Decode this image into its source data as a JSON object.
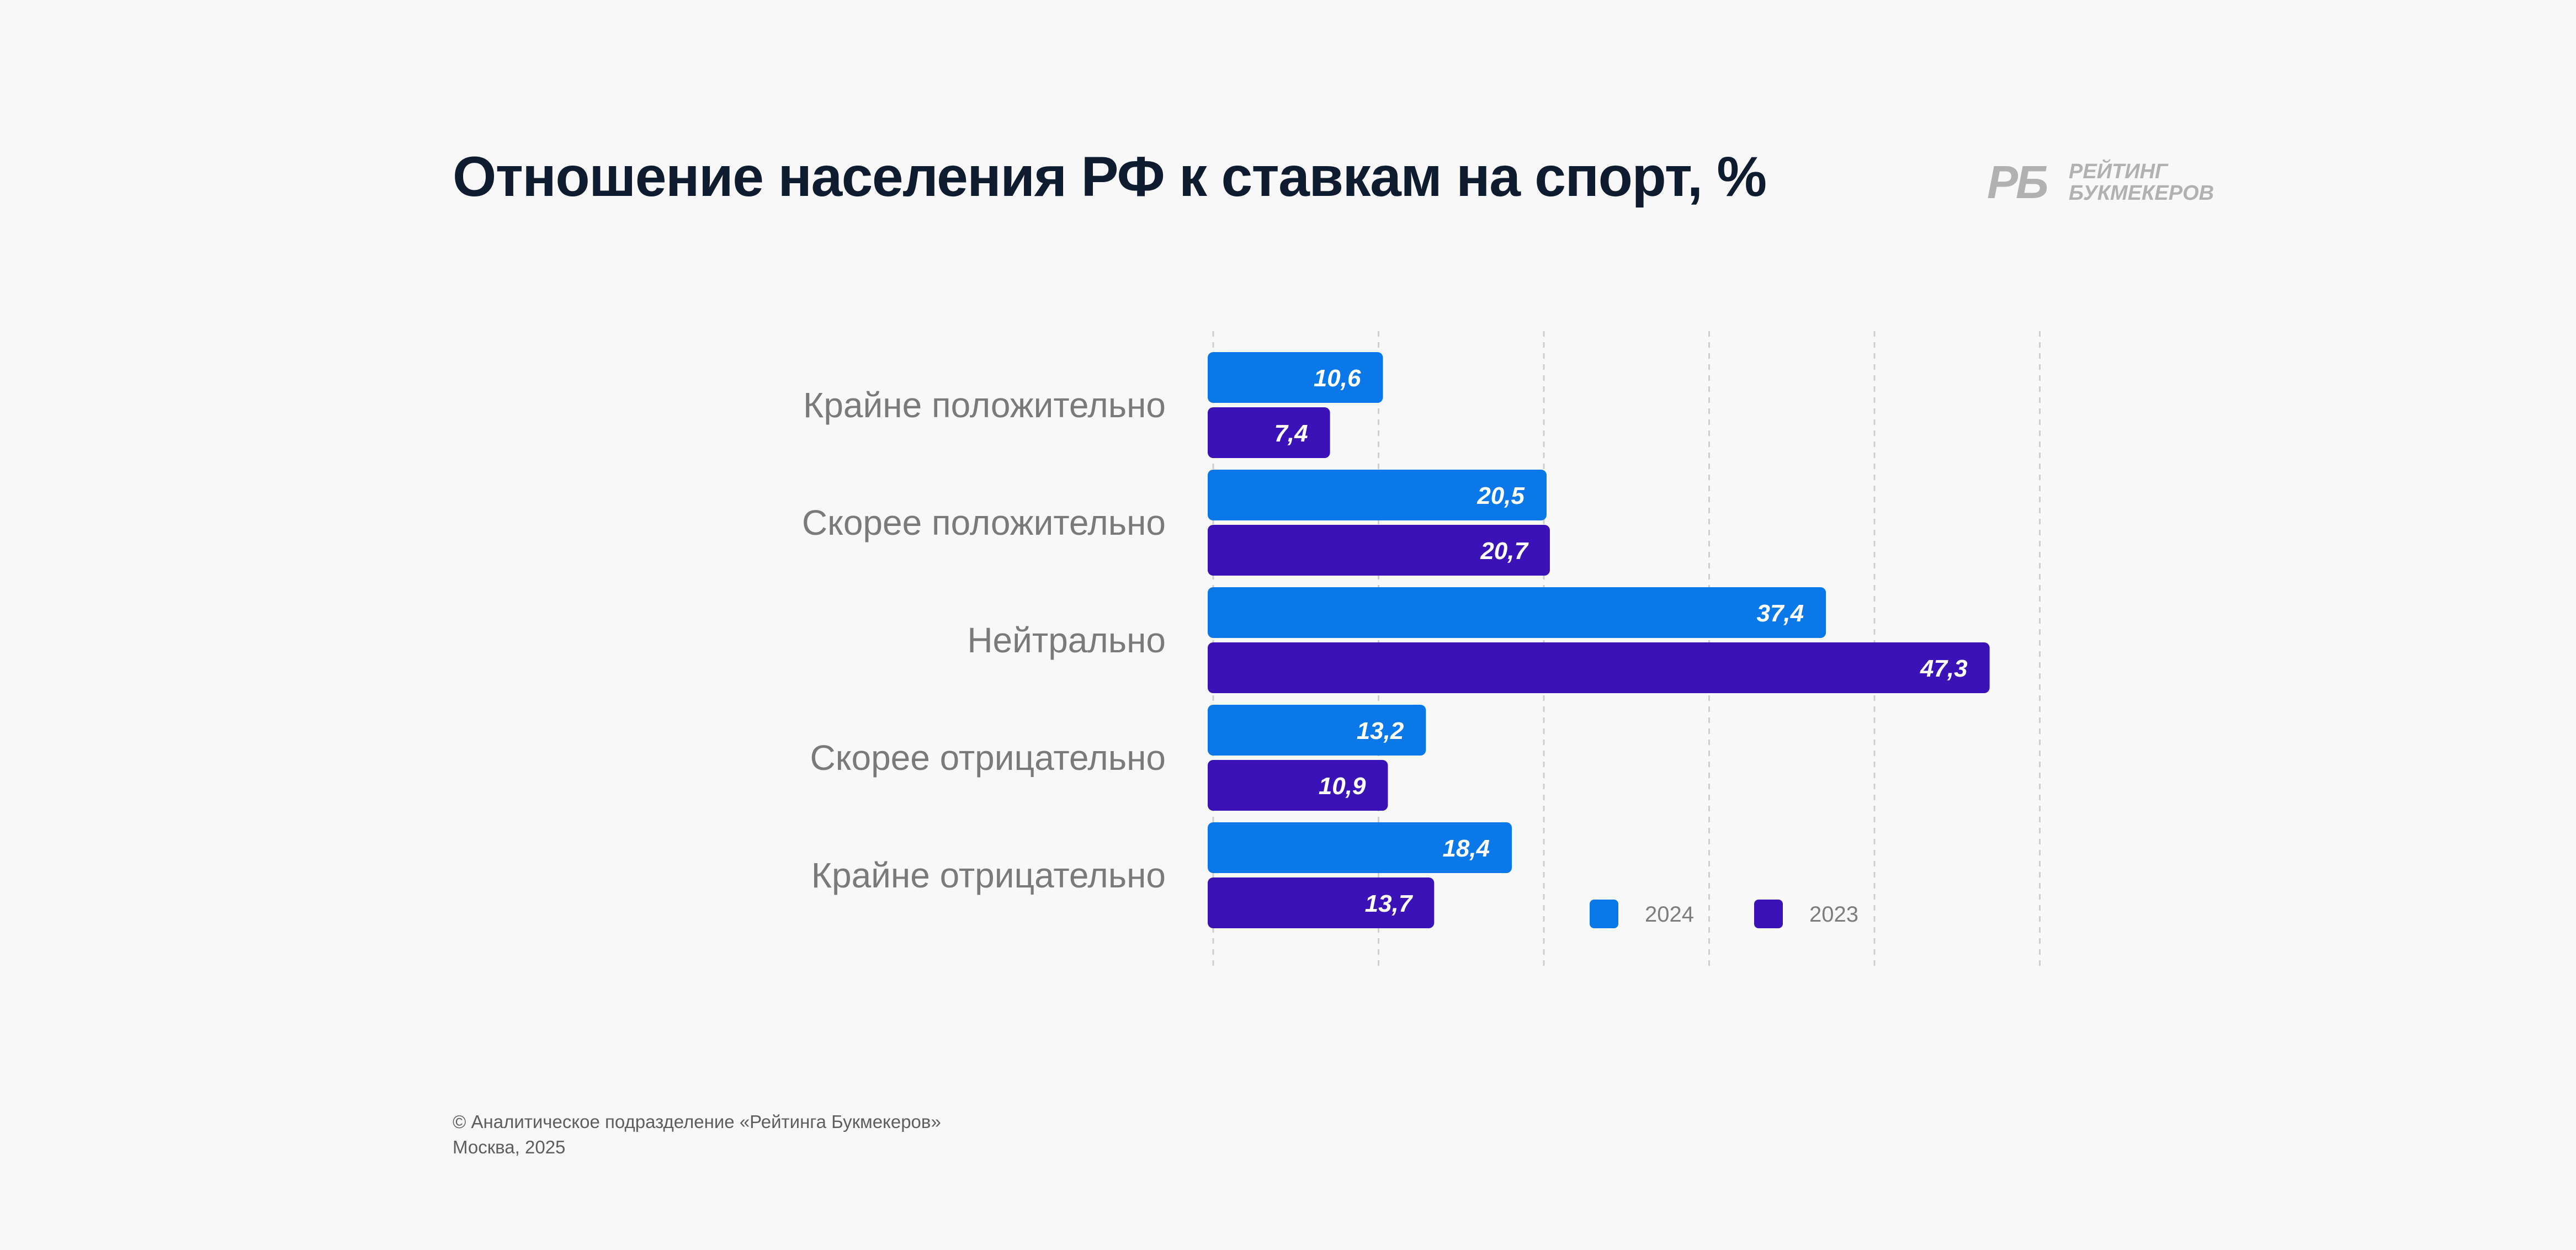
{
  "title": "Отношение населения РФ к ставкам на спорт, %",
  "logo": {
    "mark": "РБ",
    "line1": "РЕЙТИНГ",
    "line2": "БУКМЕКЕРОВ"
  },
  "footer": {
    "line1": "© Аналитическое подразделение «Рейтинга Букмекеров»",
    "line2": "Москва, 2025"
  },
  "colors": {
    "series_2024": "#0a78e8",
    "series_2023": "#3a12b8",
    "grid": "#cfcfcf"
  },
  "chart_data": {
    "type": "bar",
    "orientation": "horizontal",
    "title": "Отношение населения РФ к ставкам на спорт, %",
    "categories": [
      "Крайне положительно",
      "Скорее положительно",
      "Нейтрально",
      "Скорее отрицательно",
      "Крайне отрицательно"
    ],
    "series": [
      {
        "name": "2024",
        "values": [
          10.6,
          20.5,
          37.4,
          13.2,
          18.4
        ],
        "labels": [
          "10,6",
          "20,5",
          "37,4",
          "13,2",
          "18,4"
        ]
      },
      {
        "name": "2023",
        "values": [
          7.4,
          20.7,
          47.3,
          10.9,
          13.7
        ],
        "labels": [
          "7,4",
          "20,7",
          "47,3",
          "10,9",
          "13,7"
        ]
      }
    ],
    "xlim": [
      0,
      50
    ],
    "grid": true,
    "legend": "bottom-right"
  }
}
